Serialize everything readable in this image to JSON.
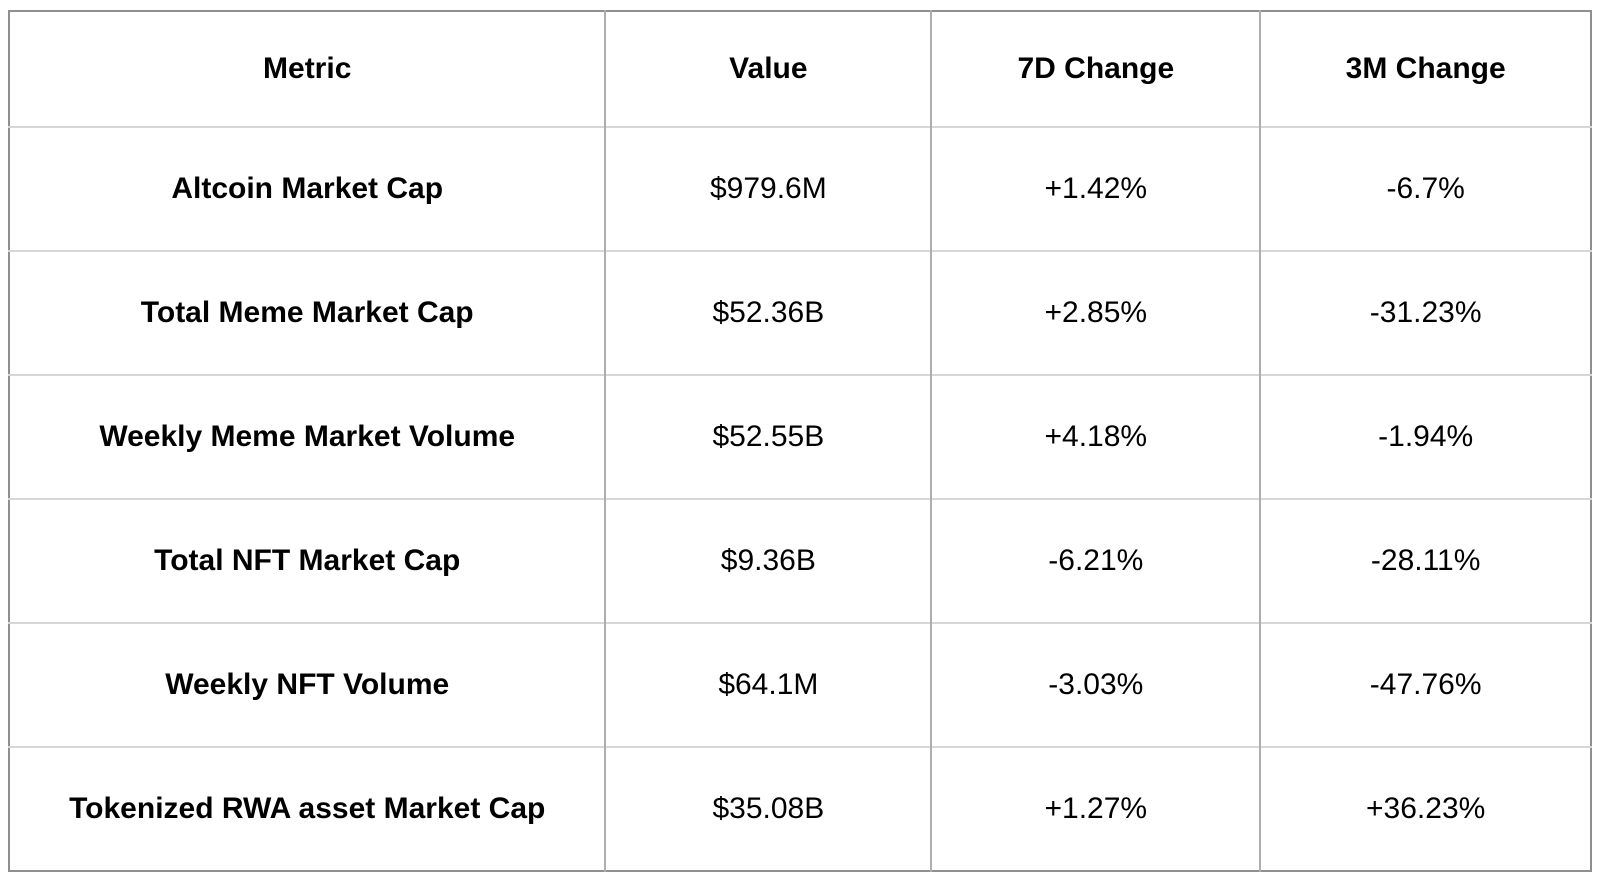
{
  "colors": {
    "text_color": "#000000",
    "outer_border": "#8f8f8f",
    "col_border": "#aeaeae",
    "row_border": "#d6d6d6",
    "page_bg": "#ffffff"
  },
  "chart_data": {
    "type": "table",
    "columns": [
      "Metric",
      "Value",
      "7D Change",
      "3M Change"
    ],
    "rows": [
      [
        "Altcoin Market Cap",
        "$979.6M",
        "+1.42%",
        "-6.7%"
      ],
      [
        "Total Meme Market Cap",
        "$52.36B",
        "+2.85%",
        "-31.23%"
      ],
      [
        "Weekly Meme Market Volume",
        "$52.55B",
        "+4.18%",
        "-1.94%"
      ],
      [
        "Total NFT Market Cap",
        "$9.36B",
        "-6.21%",
        "-28.11%"
      ],
      [
        "Weekly NFT Volume",
        "$64.1M",
        "-3.03%",
        "-47.76%"
      ],
      [
        "Tokenized RWA asset Market Cap",
        "$35.08B",
        "+1.27%",
        "+36.23%"
      ]
    ]
  }
}
